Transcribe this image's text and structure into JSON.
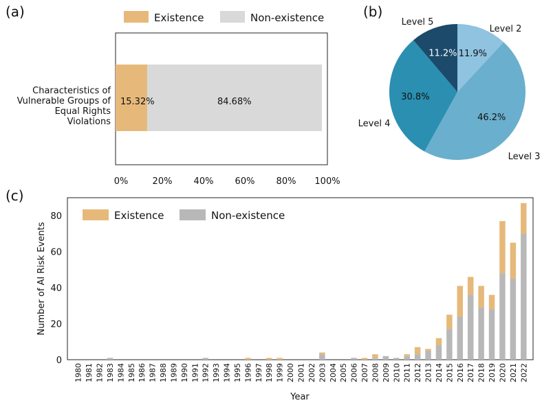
{
  "chart_data": [
    {
      "panel": "(a)",
      "type": "bar",
      "orientation": "horizontal",
      "stacked": true,
      "categories": [
        "Characteristics of Vulnerable Groups of Equal Rights Violations"
      ],
      "category_lines": [
        "Characteristics of",
        "Vulnerable Groups of",
        "Equal Rights",
        "Violations"
      ],
      "series": [
        {
          "name": "Existence",
          "values": [
            15.32
          ],
          "label": "15.32%",
          "color": "#e6b97a"
        },
        {
          "name": "Non-existence",
          "values": [
            84.68
          ],
          "label": "84.68%",
          "color": "#d9d9d9"
        }
      ],
      "xlim": [
        0,
        100
      ],
      "xticks": [
        "0%",
        "20%",
        "40%",
        "60%",
        "80%",
        "100%"
      ],
      "legend": "top"
    },
    {
      "panel": "(b)",
      "type": "pie",
      "slices": [
        {
          "name": "Level 2",
          "value": 11.9,
          "label": "11.9%",
          "color": "#8fc3e0"
        },
        {
          "name": "Level 3",
          "value": 46.2,
          "label": "46.2%",
          "color": "#6aafcd"
        },
        {
          "name": "Level 4",
          "value": 30.8,
          "label": "30.8%",
          "color": "#2a8fb0"
        },
        {
          "name": "Level 5",
          "value": 11.2,
          "label": "11.2%",
          "color": "#1b4a6b"
        }
      ]
    },
    {
      "panel": "(c)",
      "type": "bar",
      "stacked": true,
      "xlabel": "Year",
      "ylabel": "Number of AI Risk Events",
      "ylim": [
        0,
        90
      ],
      "yticks": [
        0,
        20,
        40,
        60,
        80
      ],
      "legend": "top-left",
      "categories": [
        "1980",
        "1981",
        "1982",
        "1983",
        "1984",
        "1985",
        "1986",
        "1987",
        "1988",
        "1989",
        "1990",
        "1991",
        "1992",
        "1993",
        "1994",
        "1995",
        "1996",
        "1997",
        "1998",
        "1999",
        "2000",
        "2001",
        "2002",
        "2003",
        "2004",
        "2005",
        "2006",
        "2007",
        "2008",
        "2009",
        "2010",
        "2011",
        "2012",
        "2013",
        "2014",
        "2015",
        "2016",
        "2017",
        "2018",
        "2019",
        "2020",
        "2021",
        "2022"
      ],
      "series": [
        {
          "name": "Existence",
          "color": "#e6b97a",
          "values": [
            0,
            0,
            0,
            0,
            0,
            0,
            0,
            0,
            0,
            0,
            0,
            0,
            0,
            0,
            0,
            0,
            1,
            0,
            1,
            1,
            0,
            0,
            0,
            1,
            0,
            0,
            0,
            1,
            2,
            0,
            0,
            1,
            4,
            1,
            4,
            8,
            17,
            10,
            12,
            8,
            29,
            20,
            17
          ]
        },
        {
          "name": "Non-existence",
          "color": "#b8b8b8",
          "values": [
            0,
            0,
            0,
            1,
            0,
            0,
            0,
            0,
            0,
            0,
            0,
            0,
            1,
            0,
            0,
            0,
            0,
            0,
            0,
            0,
            0,
            0,
            0,
            3,
            0,
            0,
            1,
            0,
            1,
            2,
            1,
            2,
            3,
            5,
            8,
            17,
            24,
            36,
            29,
            28,
            48,
            45,
            70
          ]
        }
      ]
    }
  ]
}
